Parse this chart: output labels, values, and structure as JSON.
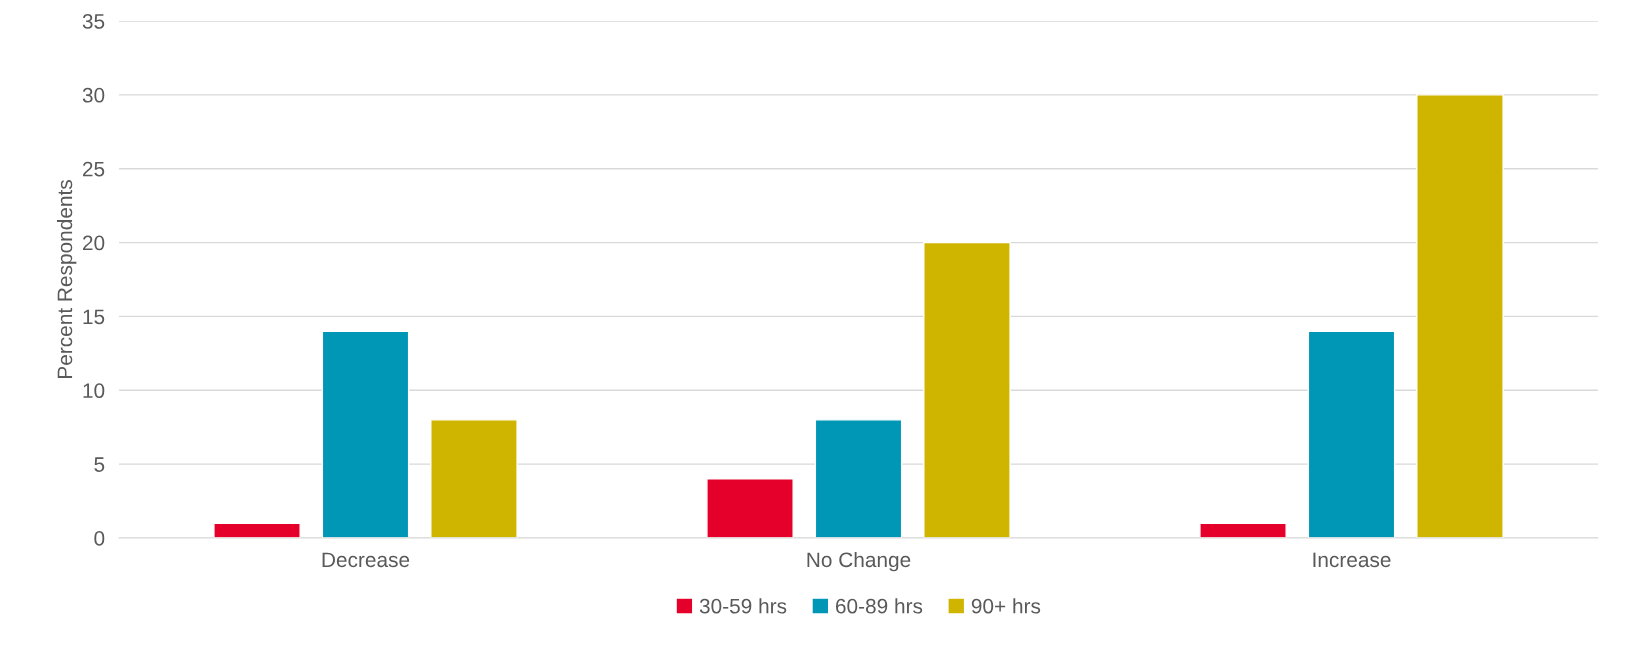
{
  "chart_data": {
    "type": "bar",
    "ylabel": "Percent Respondents",
    "categories": [
      "Decrease",
      "No Change",
      "Increase"
    ],
    "series": [
      {
        "name": "30-59 hrs",
        "color": "#e4002b",
        "values": [
          1,
          4,
          1
        ]
      },
      {
        "name": "60-89 hrs",
        "color": "#0096b6",
        "values": [
          14,
          8,
          14
        ]
      },
      {
        "name": "90+ hrs",
        "color": "#cfb500",
        "values": [
          8,
          20,
          30
        ]
      }
    ],
    "ylim": [
      0,
      35
    ],
    "yticks": [
      0,
      5,
      10,
      15,
      20,
      25,
      30,
      35
    ],
    "grid": "y",
    "legend": "bottom"
  }
}
